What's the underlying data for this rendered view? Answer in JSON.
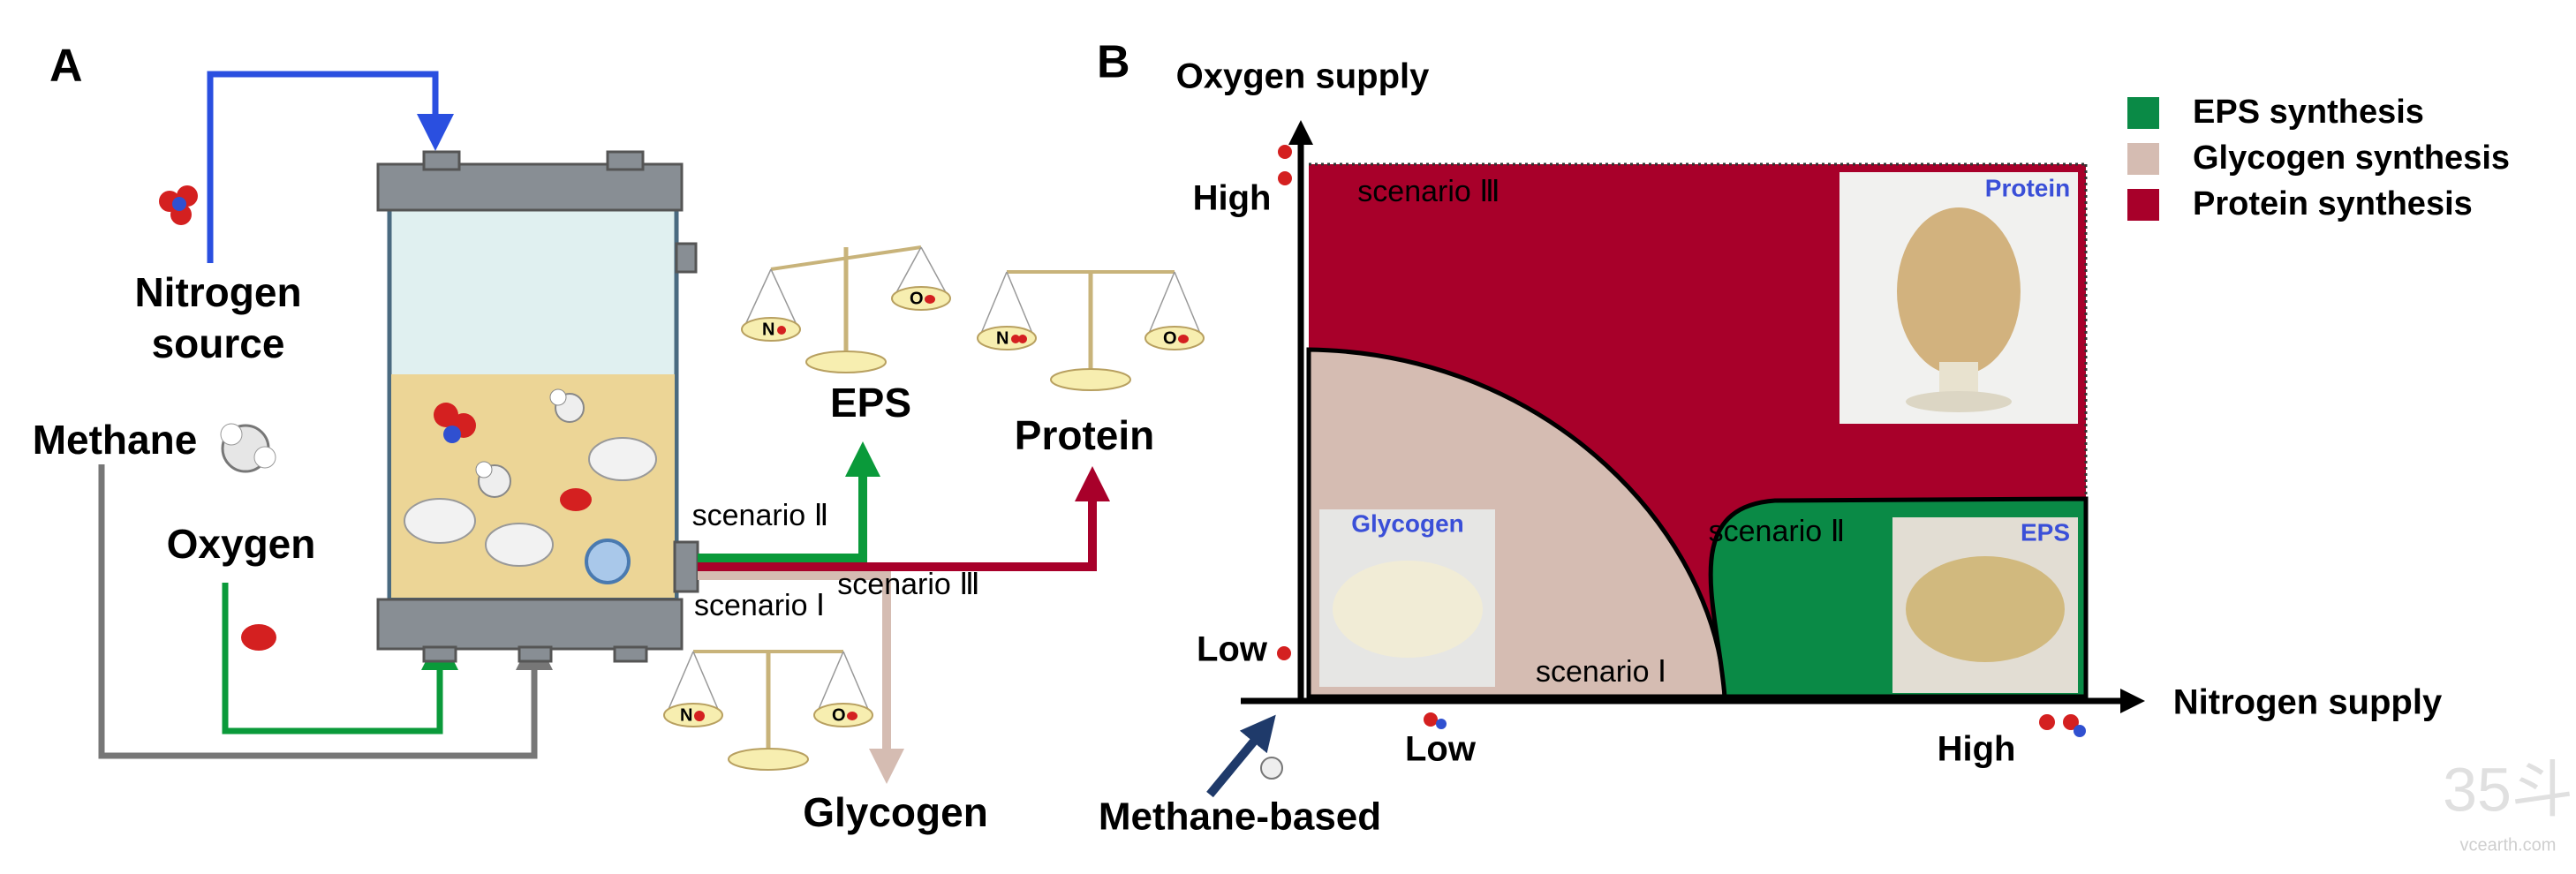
{
  "panel_a": {
    "label": "A",
    "nitrogen_source": [
      "Nitrogen",
      "source"
    ],
    "methane": "Methane",
    "oxygen": "Oxygen",
    "scenarios": [
      "scenario Ⅰ",
      "scenario Ⅱ",
      "scenario Ⅲ"
    ],
    "products": [
      "Glycogen",
      "EPS",
      "Protein"
    ],
    "balance_labels": {
      "nitrogen": "N",
      "oxygen": "O"
    }
  },
  "panel_b": {
    "label": "B",
    "y_axis": "Oxygen supply",
    "x_axis": "Nitrogen supply",
    "y_levels": [
      "Low",
      "High"
    ],
    "x_levels": [
      "Low",
      "High"
    ],
    "origin": "Methane-based",
    "legend": [
      "EPS synthesis",
      "Glycogen synthesis",
      "Protein synthesis"
    ],
    "photo_labels": [
      "Protein",
      "Glycogen",
      "EPS"
    ]
  },
  "watermark": {
    "mark": "35斗",
    "site": "vcearth.com"
  }
}
